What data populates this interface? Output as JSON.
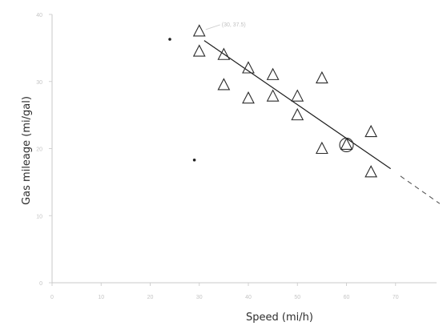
{
  "chart_data": {
    "type": "scatter",
    "xlabel": "Speed (mi/h)",
    "ylabel": "Gas mileage (mi/gal)",
    "xlim": [
      0,
      80
    ],
    "ylim": [
      0,
      40
    ],
    "x_ticks": [
      0,
      10,
      20,
      30,
      40,
      50,
      60,
      70
    ],
    "y_ticks": [
      0,
      10,
      20,
      30,
      40
    ],
    "grid": false,
    "marker": "triangle",
    "points": [
      {
        "x": 30,
        "y": 37.5
      },
      {
        "x": 30,
        "y": 34.5
      },
      {
        "x": 35,
        "y": 34.0
      },
      {
        "x": 35,
        "y": 29.5
      },
      {
        "x": 40,
        "y": 32.0
      },
      {
        "x": 40,
        "y": 27.5
      },
      {
        "x": 45,
        "y": 31.0
      },
      {
        "x": 45,
        "y": 27.8
      },
      {
        "x": 50,
        "y": 27.8
      },
      {
        "x": 50,
        "y": 25.0
      },
      {
        "x": 55,
        "y": 30.5
      },
      {
        "x": 55,
        "y": 20.0
      },
      {
        "x": 60,
        "y": 20.6
      },
      {
        "x": 65,
        "y": 22.5
      },
      {
        "x": 65,
        "y": 16.5
      }
    ],
    "circled_point": {
      "x": 60,
      "y": 20.6
    },
    "trendline": {
      "x": [
        31,
        69
      ],
      "y": [
        36.1,
        17.0
      ]
    },
    "trendline_extension": {
      "x": [
        71,
        79
      ],
      "y": [
        15.9,
        11.8
      ]
    },
    "stray_marks": [
      {
        "x": 24,
        "y": 36.3
      },
      {
        "x": 29,
        "y": 18.3
      }
    ],
    "annotation": {
      "x": 30,
      "y": 37.5,
      "text": "(30, 37.5)"
    }
  }
}
